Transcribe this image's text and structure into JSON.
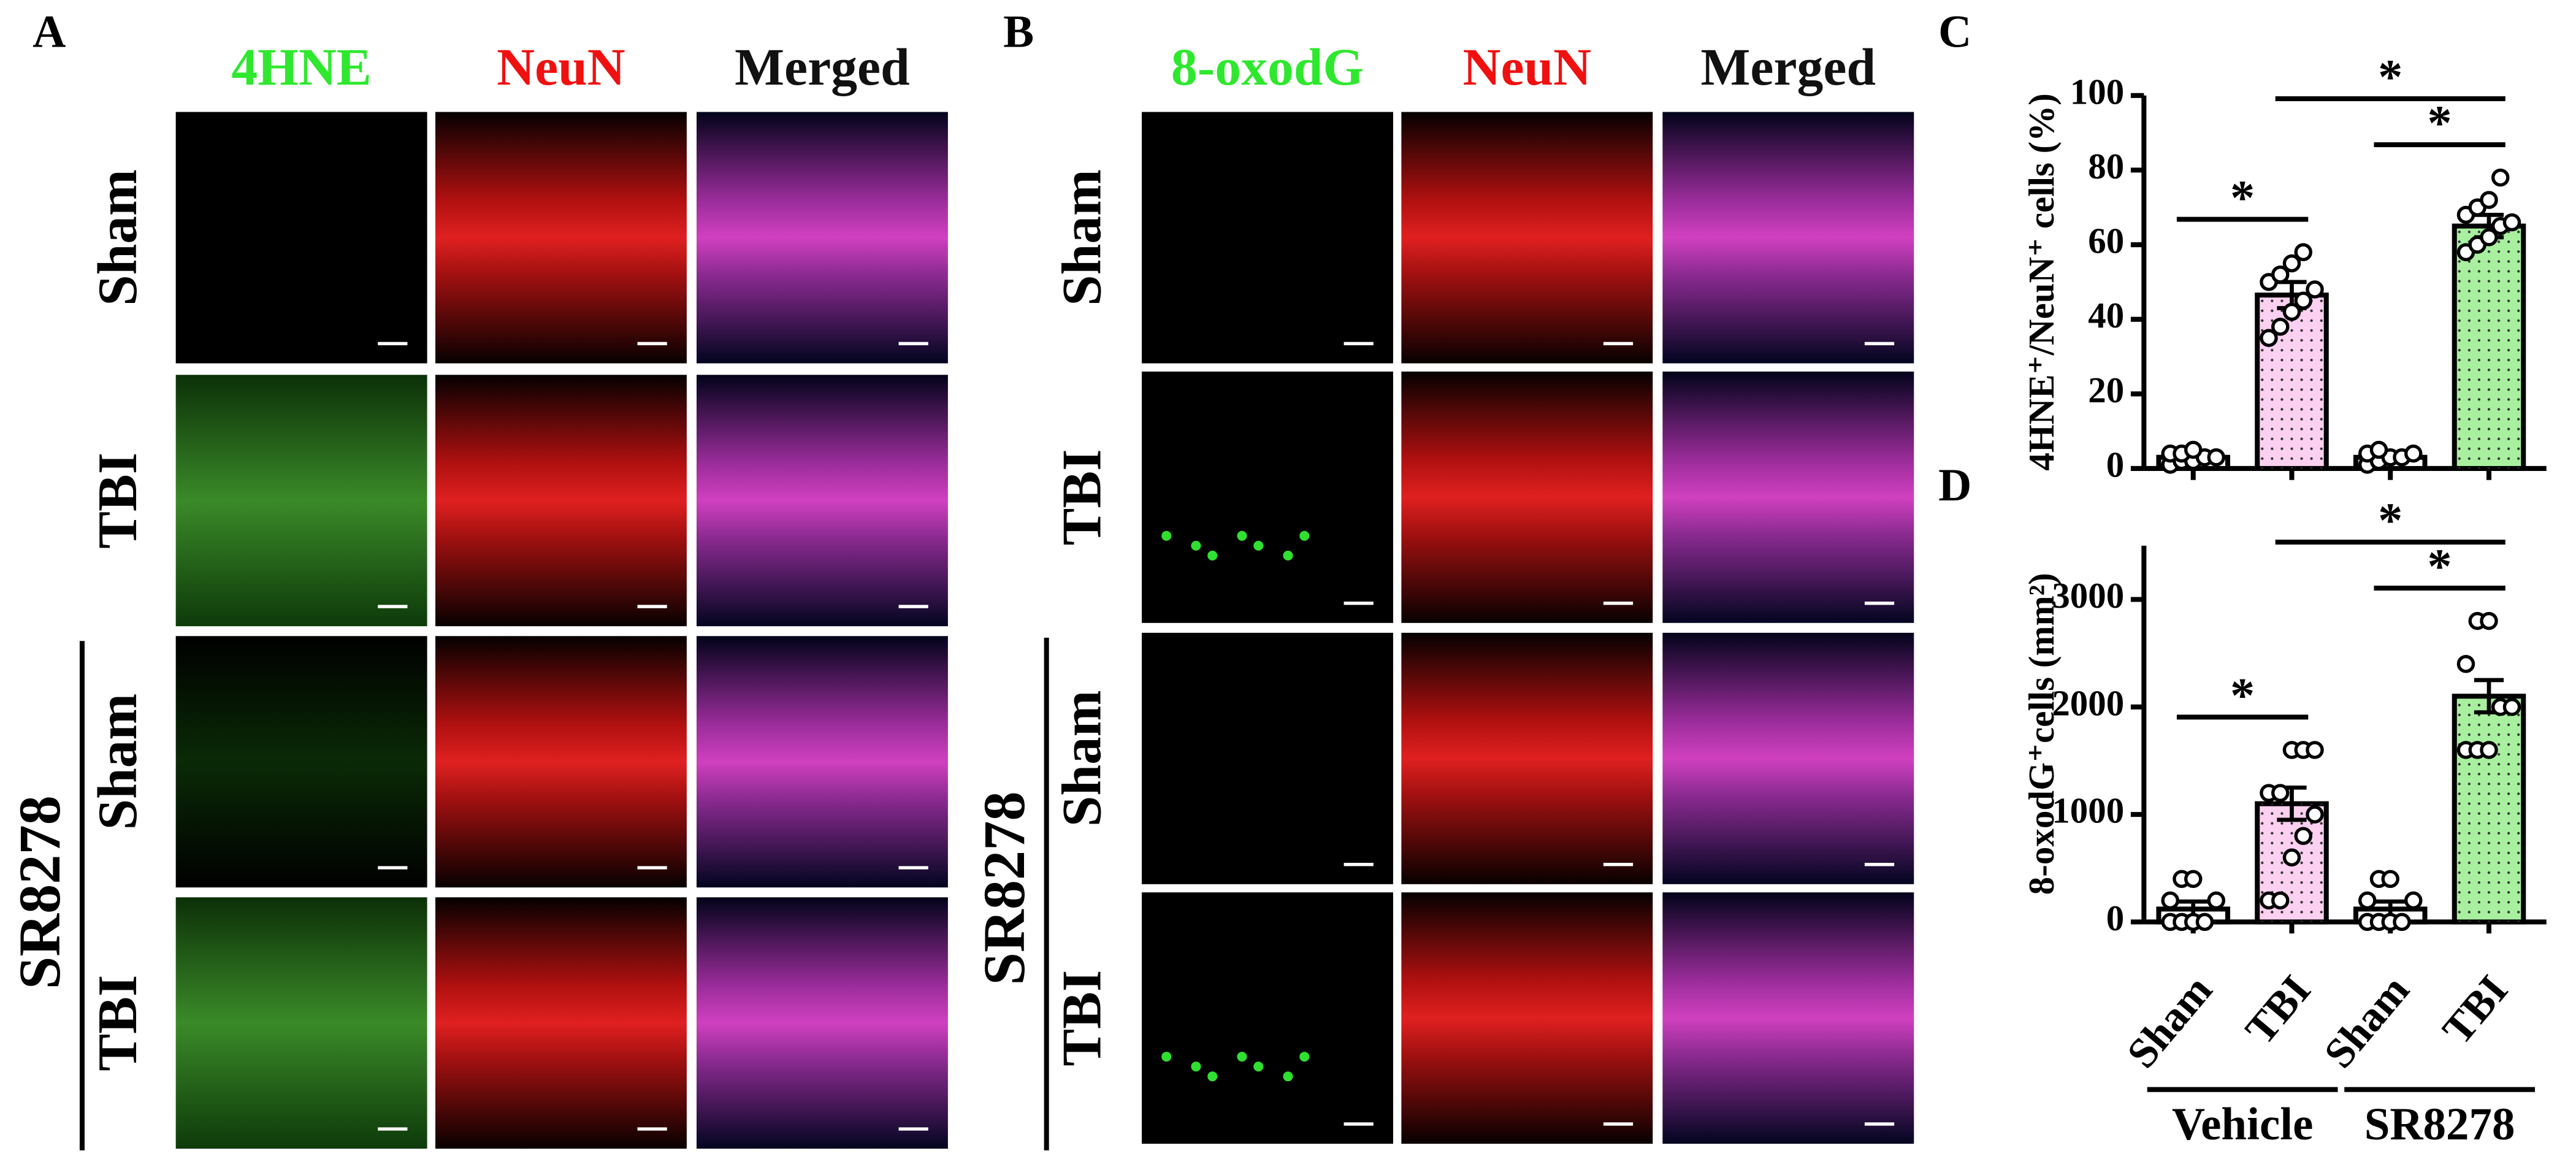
{
  "panels": [
    {
      "label": "A",
      "columns": [
        "4HNE",
        "NeuN",
        "Merged"
      ],
      "rows": [
        "Sham",
        "TBI",
        "Sham",
        "TBI"
      ],
      "group": "SR8278"
    },
    {
      "label": "B",
      "columns": [
        "8-oxodG",
        "NeuN",
        "Merged"
      ],
      "rows": [
        "Sham",
        "TBI",
        "Sham",
        "TBI"
      ],
      "group": "SR8278"
    }
  ],
  "chart_data": [
    {
      "type": "bar",
      "panel_label": "C",
      "y_label": "4HNE⁺/NeuN⁺ cells (%)",
      "categories": [
        null,
        null,
        null,
        null
      ],
      "values": [
        3,
        46.5,
        3,
        65
      ],
      "errors": [
        1,
        3.5,
        1,
        3
      ],
      "points": [
        [
          1,
          2,
          2,
          3,
          3,
          4,
          4,
          5
        ],
        [
          35,
          38,
          42,
          45,
          48,
          50,
          52,
          55,
          58
        ],
        [
          1,
          2,
          3,
          3,
          4,
          4,
          5
        ],
        [
          58,
          60,
          62,
          65,
          66,
          68,
          70,
          72,
          78
        ]
      ],
      "colors": [
        "#ffffff",
        "#fbd0f0",
        "#ffffff",
        "#a8f0a0"
      ],
      "textured": [
        false,
        true,
        false,
        true
      ],
      "ylim": [
        0,
        100
      ],
      "yticks": [
        0,
        20,
        40,
        60,
        80,
        100
      ],
      "comparisons": [
        {
          "label": "*",
          "between": [
            0,
            1
          ]
        },
        {
          "label": "*",
          "between": [
            2,
            3
          ]
        },
        {
          "label": "*",
          "between": [
            1,
            3
          ]
        }
      ]
    },
    {
      "type": "bar",
      "panel_label": "D",
      "y_label": "8-oxodG⁺cells (mm²)",
      "categories": [
        "Sham",
        "TBI",
        "Sham",
        "TBI"
      ],
      "groups": [
        "Vehicle",
        "SR8278"
      ],
      "values": [
        120,
        1100,
        120,
        2100
      ],
      "errors": [
        70,
        150,
        70,
        150
      ],
      "points": [
        [
          0,
          0,
          0,
          0,
          200,
          200,
          400,
          400
        ],
        [
          200,
          200,
          600,
          800,
          1000,
          1200,
          1200,
          1600,
          1600,
          1600
        ],
        [
          0,
          0,
          0,
          0,
          200,
          200,
          400,
          400
        ],
        [
          1600,
          1600,
          1600,
          2000,
          2000,
          2400,
          2800,
          2800
        ]
      ],
      "colors": [
        "#ffffff",
        "#fbd0f0",
        "#ffffff",
        "#a8f0a0"
      ],
      "textured": [
        false,
        true,
        false,
        true
      ],
      "ylim": [
        0,
        3500
      ],
      "yticks": [
        0,
        1000,
        2000,
        3000
      ],
      "comparisons": [
        {
          "label": "*",
          "between": [
            0,
            1
          ]
        },
        {
          "label": "*",
          "between": [
            2,
            3
          ]
        },
        {
          "label": "*",
          "between": [
            1,
            3
          ]
        }
      ]
    }
  ]
}
